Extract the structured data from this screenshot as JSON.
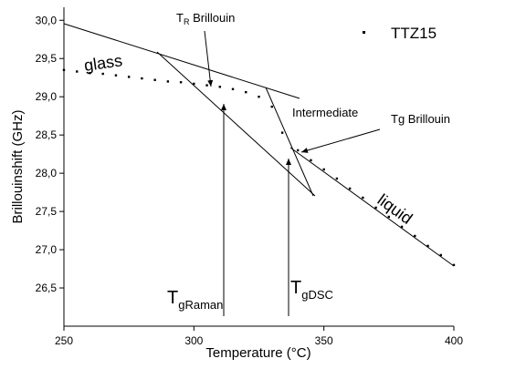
{
  "chart_data": {
    "type": "scatter",
    "x_label": "Temperature (°C)",
    "y_label": "Brillouinshift (GHz)",
    "series": [
      {
        "name": "TTZ15",
        "color": "#000000",
        "x": [
          250,
          255,
          260,
          265,
          270,
          275,
          280,
          285,
          290,
          295,
          300,
          305,
          310,
          315,
          320,
          325,
          330,
          334,
          340,
          345,
          350,
          355,
          360,
          365,
          370,
          375,
          380,
          385,
          390,
          395,
          400
        ],
        "values": [
          29.35,
          29.33,
          29.31,
          29.3,
          29.28,
          29.26,
          29.24,
          29.22,
          29.2,
          29.19,
          29.17,
          29.15,
          29.13,
          29.1,
          29.06,
          29.0,
          28.87,
          28.53,
          28.3,
          28.17,
          28.05,
          27.93,
          27.8,
          27.68,
          27.55,
          27.43,
          27.3,
          27.18,
          27.05,
          26.93,
          26.8
        ]
      }
    ],
    "xlim": [
      250,
      400
    ],
    "xticks": [
      250,
      300,
      350,
      400
    ],
    "ylim": [
      26,
      30.17
    ],
    "yticks": [
      {
        "value": 26.5,
        "label": "26,5"
      },
      {
        "value": 27,
        "label": "27,0"
      },
      {
        "value": 27.5,
        "label": "27,5"
      },
      {
        "value": 28,
        "label": "28,0"
      },
      {
        "value": 28.5,
        "label": "28,5"
      },
      {
        "value": 29,
        "label": "29,0"
      },
      {
        "value": 29.5,
        "label": "29,5"
      },
      {
        "value": 30,
        "label": "30,0"
      }
    ],
    "annotations": {
      "glass": "glass",
      "liquid": "liquid",
      "intermediate": "Intermediate",
      "tg_brillouin": "Tg Brillouin",
      "tr_brillouin": {
        "main": "T",
        "sub": "R",
        "rest": " Brillouin"
      },
      "tg_raman": {
        "main": "T",
        "sub": "gRaman"
      },
      "tg_dsc": {
        "main": "T",
        "sub": "gDSC"
      }
    }
  }
}
